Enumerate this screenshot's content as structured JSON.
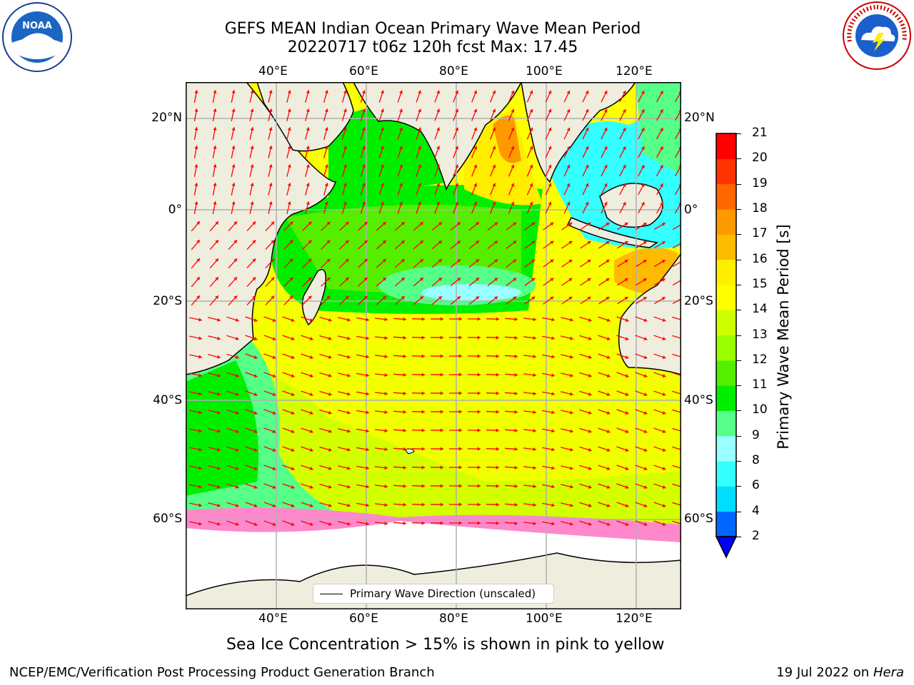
{
  "title": {
    "line1": "GEFS MEAN Indian Ocean Primary Wave Mean Period",
    "line2": "20220717 t06z 120h fcst   Max: 17.45"
  },
  "axes": {
    "lon_labels": [
      "40°E",
      "60°E",
      "80°E",
      "100°E",
      "120°E"
    ],
    "lat_labels": [
      "20°N",
      "0°",
      "20°S",
      "40°S",
      "60°S"
    ]
  },
  "colorbar": {
    "label": "Primary Wave Mean Period [s]",
    "ticks": [
      "2",
      "4",
      "6",
      "8",
      "9",
      "10",
      "11",
      "12",
      "13",
      "14",
      "15",
      "16",
      "17",
      "18",
      "19",
      "20",
      "21"
    ],
    "colors": [
      "#0066ff",
      "#00ddff",
      "#33ffff",
      "#99ffff",
      "#55ff88",
      "#00ee00",
      "#55ee00",
      "#99ff00",
      "#ccff00",
      "#ffff00",
      "#ffee00",
      "#ffbb00",
      "#ff9900",
      "#ff6600",
      "#ff3300",
      "#ff0000"
    ],
    "extend_color": "#0000ff"
  },
  "legend": {
    "label": "Primary Wave Direction (unscaled)"
  },
  "caption": "Sea Ice Concentration > 15% is shown in pink to yellow",
  "footer": {
    "left": "NCEP/EMC/Verification Post Processing Product Generation Branch",
    "right_date": "19 Jul 2022 on ",
    "right_host": "Hera"
  },
  "logos": {
    "noaa": "NOAA",
    "nws": "NATIONAL WEATHER SERVICE"
  },
  "map_colors": {
    "land": "#efedde",
    "sea_ice": "#ff88cc",
    "vectors": "#ff0000"
  }
}
